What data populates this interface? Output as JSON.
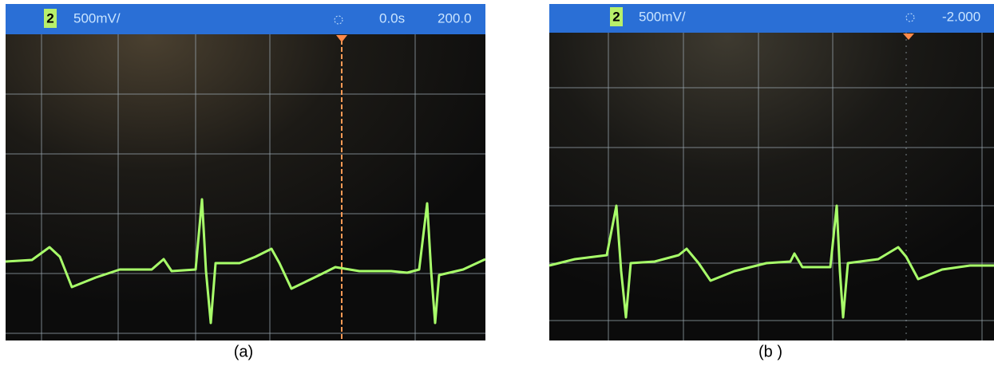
{
  "panels": [
    {
      "channel": "2",
      "scale": "500mV/",
      "time": "0.0s",
      "timebase": "200.0",
      "caption": "(a)"
    },
    {
      "channel": "2",
      "scale": "500mV/",
      "timebase": "-2.000",
      "caption": "(b )"
    }
  ]
}
